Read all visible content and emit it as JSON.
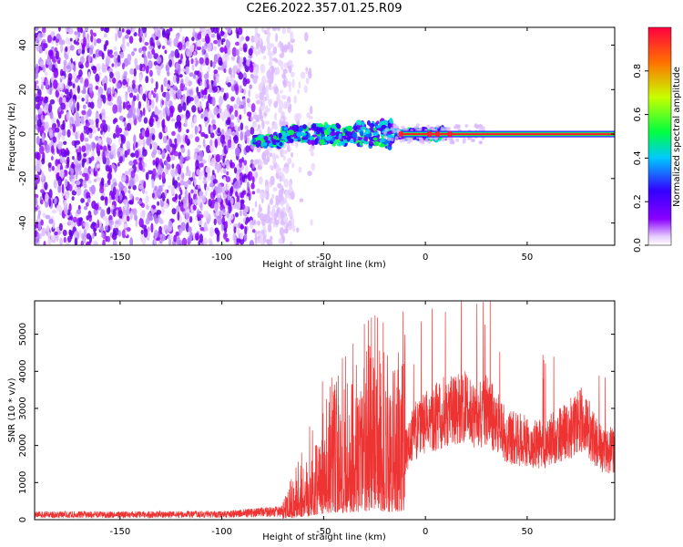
{
  "title": "C2E6.2022.357.01.25.R09",
  "chart_data": [
    {
      "type": "heatmap",
      "xlabel": "Height of straight line (km)",
      "ylabel": "Frequency (Hz)",
      "xlim": [
        -192,
        93
      ],
      "ylim": [
        -50,
        48
      ],
      "x_ticks": [
        -150,
        -100,
        -50,
        0,
        50
      ],
      "y_ticks": [
        -40,
        -20,
        0,
        20,
        40
      ],
      "x_tick_labels": [
        "-150",
        "-100",
        "-50",
        "0",
        "50"
      ],
      "y_tick_labels": [
        "-40",
        "-20",
        "0",
        "20",
        "40"
      ],
      "noise_region": {
        "x_start": -192,
        "x_end": -65,
        "y_range": [
          -50,
          48
        ]
      },
      "signal_line": {
        "x_start": -85,
        "x_end": 93,
        "y_center": 0
      },
      "colorbar": {
        "label": "Normalized spectral amplitude",
        "range": [
          0,
          1
        ],
        "ticks": [
          0.0,
          0.2,
          0.4,
          0.6,
          0.8
        ],
        "tick_labels": [
          "0.0",
          "0.2",
          "0.4",
          "0.6",
          "0.8"
        ],
        "colors": [
          "#ffffff",
          "#8a00ff",
          "#3300ff",
          "#00c8ff",
          "#00ff40",
          "#c8ff00",
          "#ff7000",
          "#ff0040"
        ]
      }
    },
    {
      "type": "line",
      "xlabel": "Height of straight line (km)",
      "ylabel": "SNR (10 * v/v)",
      "xlim": [
        -192,
        93
      ],
      "ylim": [
        0,
        5900
      ],
      "x_ticks": [
        -150,
        -100,
        -50,
        0,
        50
      ],
      "y_ticks": [
        0,
        1000,
        2000,
        3000,
        4000,
        5000
      ],
      "x_tick_labels": [
        "-150",
        "-100",
        "-50",
        "0",
        "50"
      ],
      "y_tick_labels": [
        "0",
        "1000",
        "2000",
        "3000",
        "4000",
        "5000"
      ],
      "series_color": "#ee3333",
      "envelope": [
        [
          -192,
          150
        ],
        [
          -150,
          150
        ],
        [
          -100,
          160
        ],
        [
          -70,
          250
        ],
        [
          -65,
          500
        ],
        [
          -60,
          800
        ],
        [
          -55,
          1200
        ],
        [
          -50,
          1600
        ],
        [
          -45,
          1900
        ],
        [
          -40,
          1800
        ],
        [
          -35,
          2000
        ],
        [
          -30,
          2200
        ],
        [
          -25,
          2300
        ],
        [
          -20,
          2200
        ],
        [
          -15,
          2100
        ],
        [
          -10,
          2400
        ],
        [
          -5,
          3200
        ],
        [
          0,
          3500
        ],
        [
          5,
          3700
        ],
        [
          10,
          3900
        ],
        [
          15,
          4000
        ],
        [
          20,
          4000
        ],
        [
          25,
          3800
        ],
        [
          30,
          3900
        ],
        [
          35,
          3500
        ],
        [
          40,
          3000
        ],
        [
          45,
          2900
        ],
        [
          50,
          2800
        ],
        [
          55,
          2700
        ],
        [
          60,
          2800
        ],
        [
          65,
          3000
        ],
        [
          70,
          3200
        ],
        [
          75,
          3500
        ],
        [
          78,
          3700
        ],
        [
          80,
          3300
        ],
        [
          85,
          2600
        ],
        [
          90,
          2500
        ],
        [
          93,
          2500
        ]
      ]
    }
  ]
}
